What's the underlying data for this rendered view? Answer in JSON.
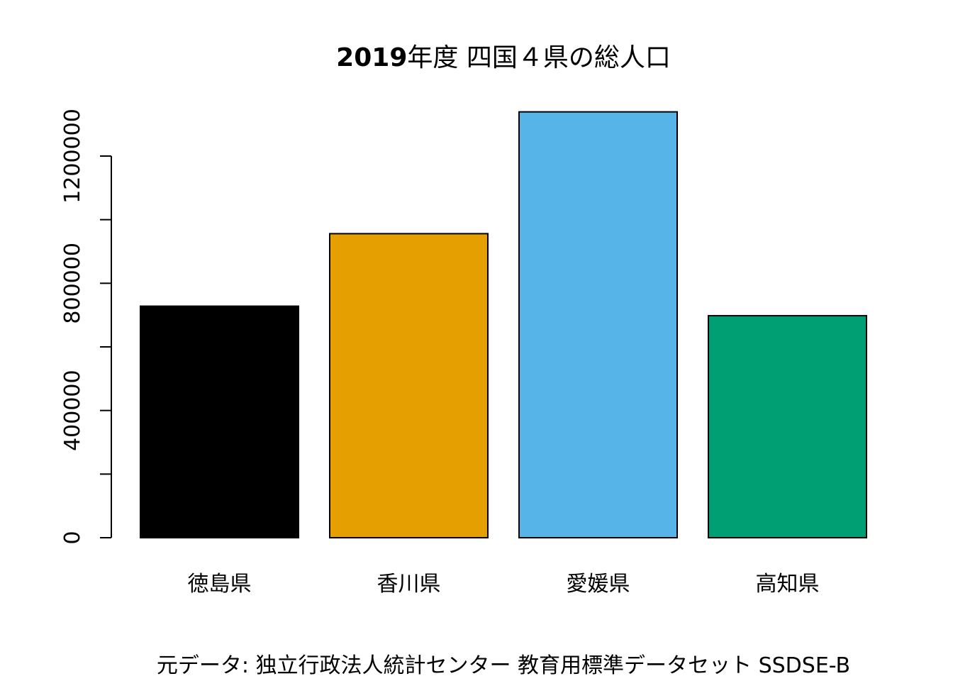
{
  "chart_data": {
    "type": "bar",
    "title_year": "2019",
    "title_rest": "年度 四国４県の総人口",
    "categories": [
      "徳島県",
      "香川県",
      "愛媛県",
      "高知県"
    ],
    "values": [
      728000,
      956000,
      1339000,
      698000
    ],
    "colors": [
      "#000000",
      "#E69F00",
      "#56B4E9",
      "#009E73"
    ],
    "ylim": [
      0,
      1339000
    ],
    "yticks_labeled": [
      {
        "value": 0,
        "label": "0"
      },
      {
        "value": 400000,
        "label": "400000"
      },
      {
        "value": 800000,
        "label": "800000"
      },
      {
        "value": 1200000,
        "label": "1200000"
      }
    ],
    "yticks_minor": [
      200000,
      600000,
      1000000
    ],
    "xlabel": "",
    "ylabel": "",
    "source": "元データ: 独立行政法人統計センター 教育用標準データセット SSDSE-B",
    "grid": false,
    "legend": "none"
  }
}
